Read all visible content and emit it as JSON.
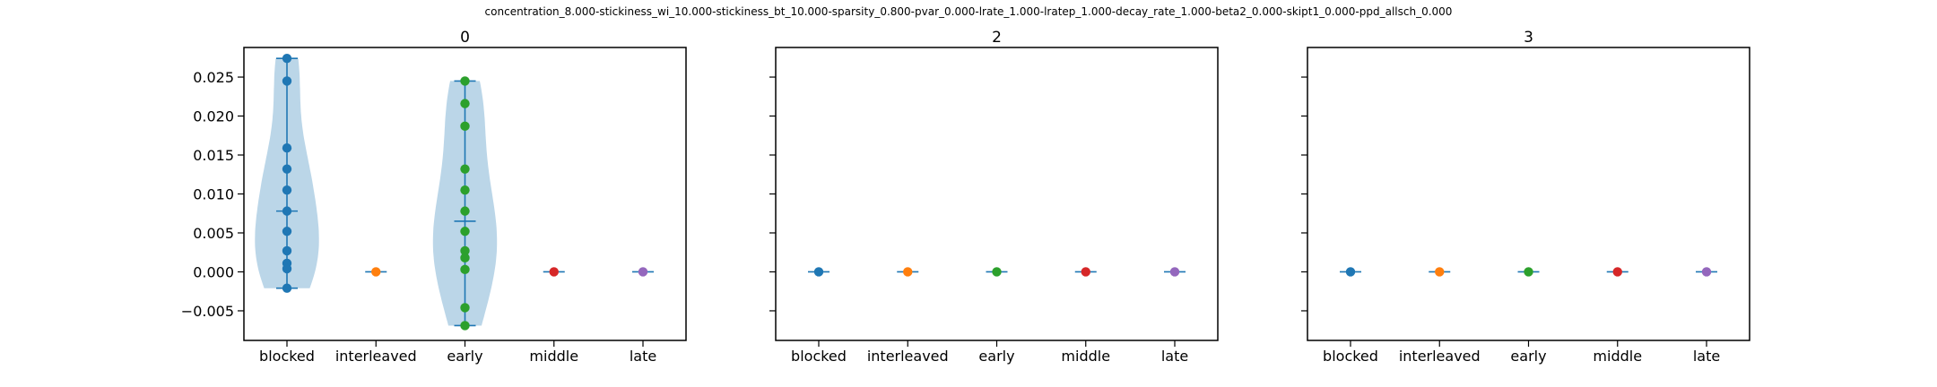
{
  "figure": {
    "suptitle": "concentration_8.000-stickiness_wi_10.000-stickiness_bt_10.000-sparsity_0.800-pvar_0.000-lrate_1.000-lratep_1.000-decay_rate_1.000-beta2_0.000-skipt1_0.000-ppd_allsch_0.000"
  },
  "colors": {
    "blocked": "#1f77b4",
    "interleaved": "#ff7f0e",
    "early": "#2ca02c",
    "middle": "#d62728",
    "late": "#9467bd",
    "violin_fill": "#1f77b4",
    "violin_line": "#1f77b4"
  },
  "chart_data": [
    {
      "type": "violin",
      "title": "0",
      "categories": [
        "blocked",
        "interleaved",
        "early",
        "middle",
        "late"
      ],
      "ylim": [
        -0.0088,
        0.0288
      ],
      "yticks": [
        -0.005,
        0.0,
        0.005,
        0.01,
        0.015,
        0.02,
        0.025
      ],
      "ytick_labels": [
        "−0.005",
        "0.000",
        "0.005",
        "0.010",
        "0.015",
        "0.020",
        "0.025"
      ],
      "show_ytick_labels": true,
      "series": [
        {
          "category": "blocked",
          "values": [
            0.0274,
            0.0245,
            0.0159,
            0.0132,
            0.0105,
            0.0078,
            0.0052,
            0.0027,
            0.0011,
            0.0004,
            -0.0021
          ]
        },
        {
          "category": "interleaved",
          "values": [
            0.0
          ]
        },
        {
          "category": "early",
          "values": [
            0.0245,
            0.0216,
            0.0187,
            0.0132,
            0.0105,
            0.0078,
            0.0052,
            0.0027,
            0.0018,
            0.0003,
            -0.0046,
            -0.0069
          ]
        },
        {
          "category": "middle",
          "values": [
            0.0
          ]
        },
        {
          "category": "late",
          "values": [
            0.0
          ]
        }
      ]
    },
    {
      "type": "violin",
      "title": "2",
      "categories": [
        "blocked",
        "interleaved",
        "early",
        "middle",
        "late"
      ],
      "ylim": [
        -0.0088,
        0.0288
      ],
      "yticks": [
        -0.005,
        0.0,
        0.005,
        0.01,
        0.015,
        0.02,
        0.025
      ],
      "ytick_labels": [
        "−0.005",
        "0.000",
        "0.005",
        "0.010",
        "0.015",
        "0.020",
        "0.025"
      ],
      "show_ytick_labels": false,
      "series": [
        {
          "category": "blocked",
          "values": [
            0.0
          ]
        },
        {
          "category": "interleaved",
          "values": [
            0.0
          ]
        },
        {
          "category": "early",
          "values": [
            0.0
          ]
        },
        {
          "category": "middle",
          "values": [
            0.0
          ]
        },
        {
          "category": "late",
          "values": [
            0.0
          ]
        }
      ]
    },
    {
      "type": "violin",
      "title": "3",
      "categories": [
        "blocked",
        "interleaved",
        "early",
        "middle",
        "late"
      ],
      "ylim": [
        -0.0088,
        0.0288
      ],
      "yticks": [
        -0.005,
        0.0,
        0.005,
        0.01,
        0.015,
        0.02,
        0.025
      ],
      "ytick_labels": [
        "−0.005",
        "0.000",
        "0.005",
        "0.010",
        "0.015",
        "0.020",
        "0.025"
      ],
      "show_ytick_labels": false,
      "series": [
        {
          "category": "blocked",
          "values": [
            0.0
          ]
        },
        {
          "category": "interleaved",
          "values": [
            0.0
          ]
        },
        {
          "category": "early",
          "values": [
            0.0
          ]
        },
        {
          "category": "middle",
          "values": [
            0.0
          ]
        },
        {
          "category": "late",
          "values": [
            0.0
          ]
        }
      ]
    }
  ]
}
